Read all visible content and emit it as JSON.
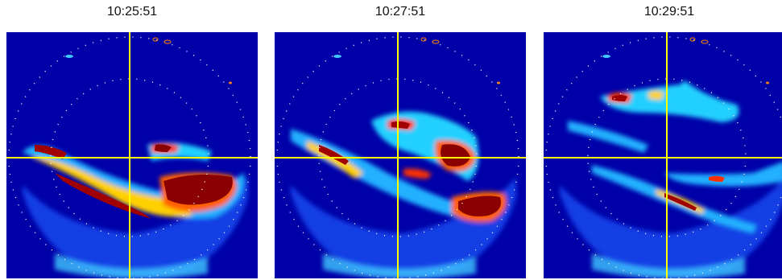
{
  "colors": {
    "background": "#0000a8",
    "crosshair": "#ffff00",
    "range_rings": "#ffffff"
  },
  "panels": [
    {
      "time": "10:25:51"
    },
    {
      "time": "10:27:51"
    },
    {
      "time": "10:29:51"
    }
  ]
}
